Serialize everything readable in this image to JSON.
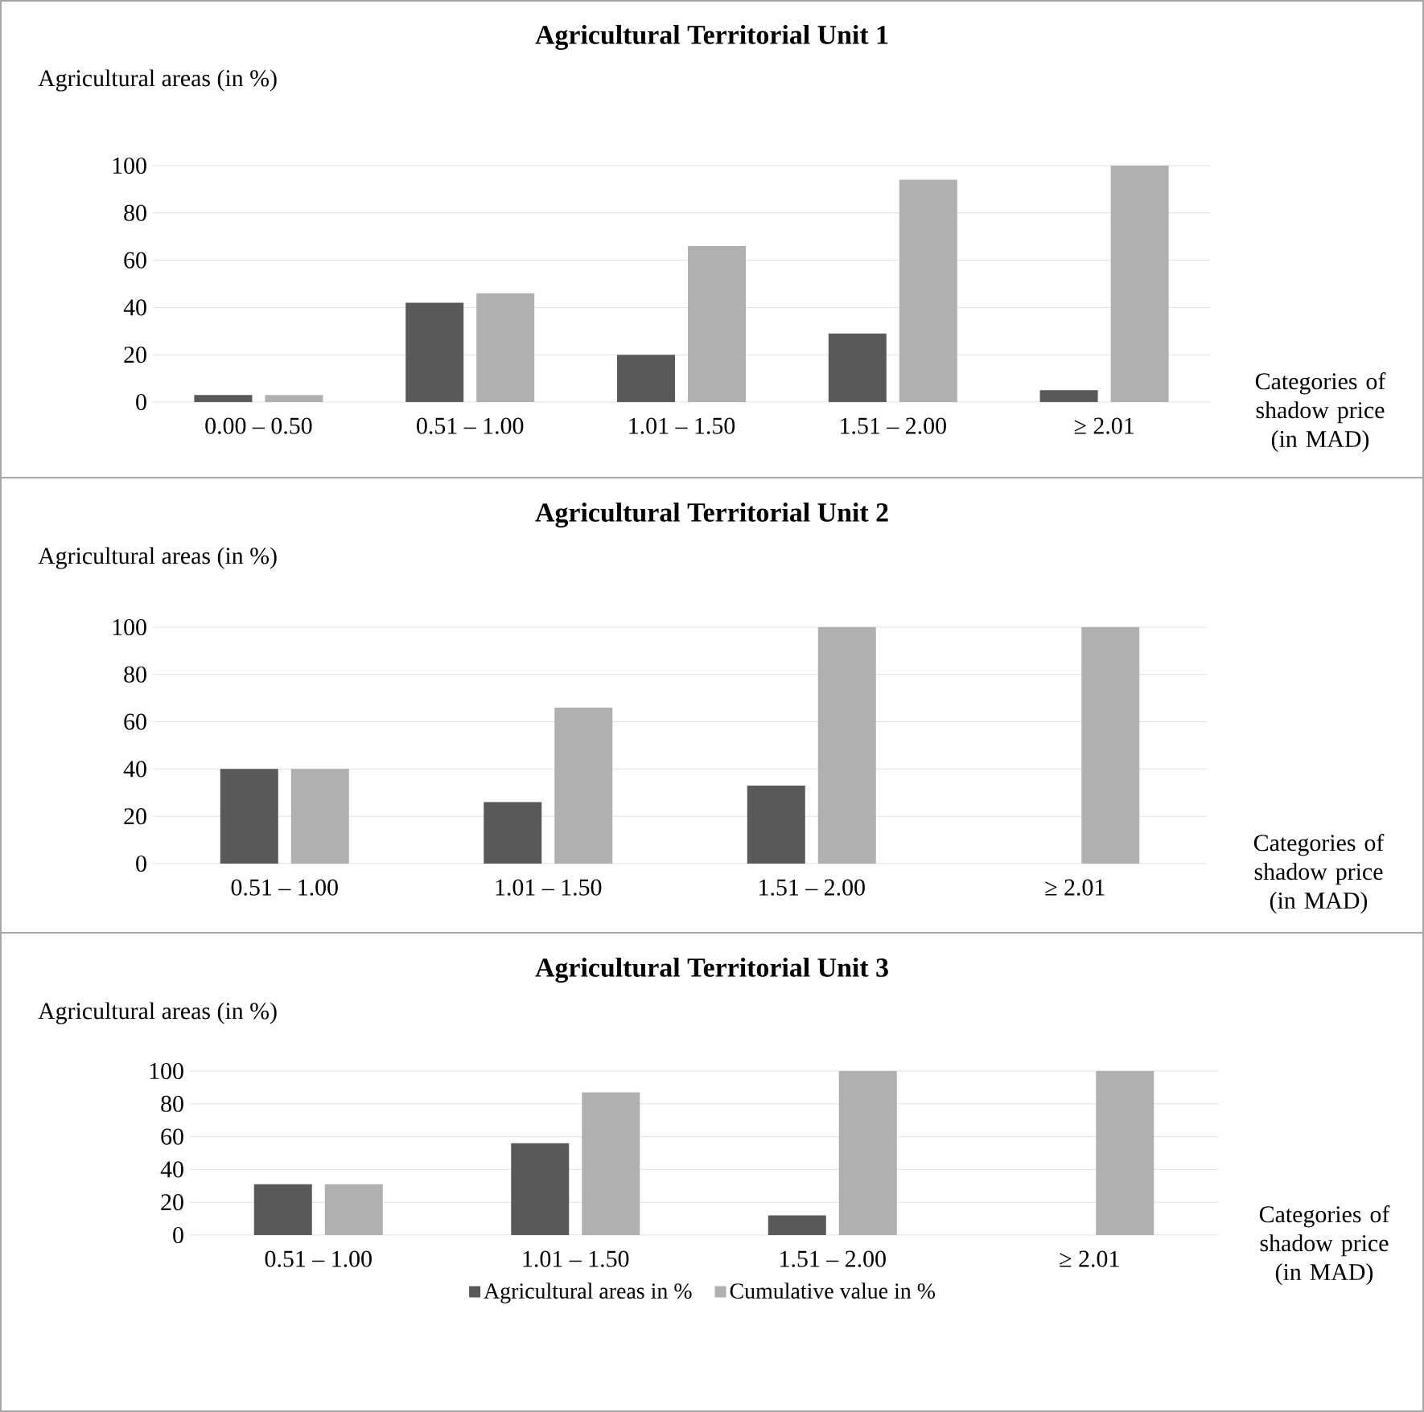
{
  "chart_data": [
    {
      "type": "bar",
      "title": "Agricultural Territorial Unit 1",
      "ylabel": "Agricultural areas (in %)",
      "xlabel": "Categories of shadow price (in MAD)",
      "categories": [
        "0.00 – 0.50",
        "0.51 – 1.00",
        "1.01 – 1.50",
        "1.51 – 2.00",
        "≥ 2.01"
      ],
      "series": [
        {
          "color": "#595959",
          "values": [
            3,
            42,
            20,
            29,
            5
          ]
        },
        {
          "color": "#b0b0b0",
          "values": [
            3,
            46,
            66,
            94,
            100
          ]
        }
      ],
      "ylim": [
        0,
        100
      ],
      "yticks": [
        0,
        20,
        40,
        60,
        80,
        100
      ],
      "grid": "y"
    },
    {
      "type": "bar",
      "title": "Agricultural Territorial Unit 2",
      "ylabel": "Agricultural areas (in %)",
      "xlabel": "Categories of shadow price (in MAD)",
      "categories": [
        "0.51 – 1.00",
        "1.01 – 1.50",
        "1.51 – 2.00",
        "≥ 2.01"
      ],
      "series": [
        {
          "color": "#595959",
          "values": [
            40,
            26,
            33,
            0
          ]
        },
        {
          "color": "#b0b0b0",
          "values": [
            40,
            66,
            100,
            100
          ]
        }
      ],
      "ylim": [
        0,
        100
      ],
      "yticks": [
        0,
        20,
        40,
        60,
        80,
        100
      ],
      "grid": "y"
    },
    {
      "type": "bar",
      "title": "Agricultural Territorial Unit 3",
      "ylabel": "Agricultural areas (in %)",
      "xlabel": "Categories of shadow price (in MAD)",
      "categories": [
        "0.51 – 1.00",
        "1.01 – 1.50",
        "1.51 – 2.00",
        "≥ 2.01"
      ],
      "series": [
        {
          "name": "Agricultural areas in %",
          "color": "#595959",
          "values": [
            31,
            56,
            12,
            0
          ]
        },
        {
          "name": "Cumulative value in %",
          "color": "#b0b0b0",
          "values": [
            31,
            87,
            100,
            100
          ]
        }
      ],
      "ylim": [
        0,
        100
      ],
      "yticks": [
        0,
        20,
        40,
        60,
        80,
        100
      ],
      "grid": "y",
      "legend": "bottom"
    }
  ]
}
